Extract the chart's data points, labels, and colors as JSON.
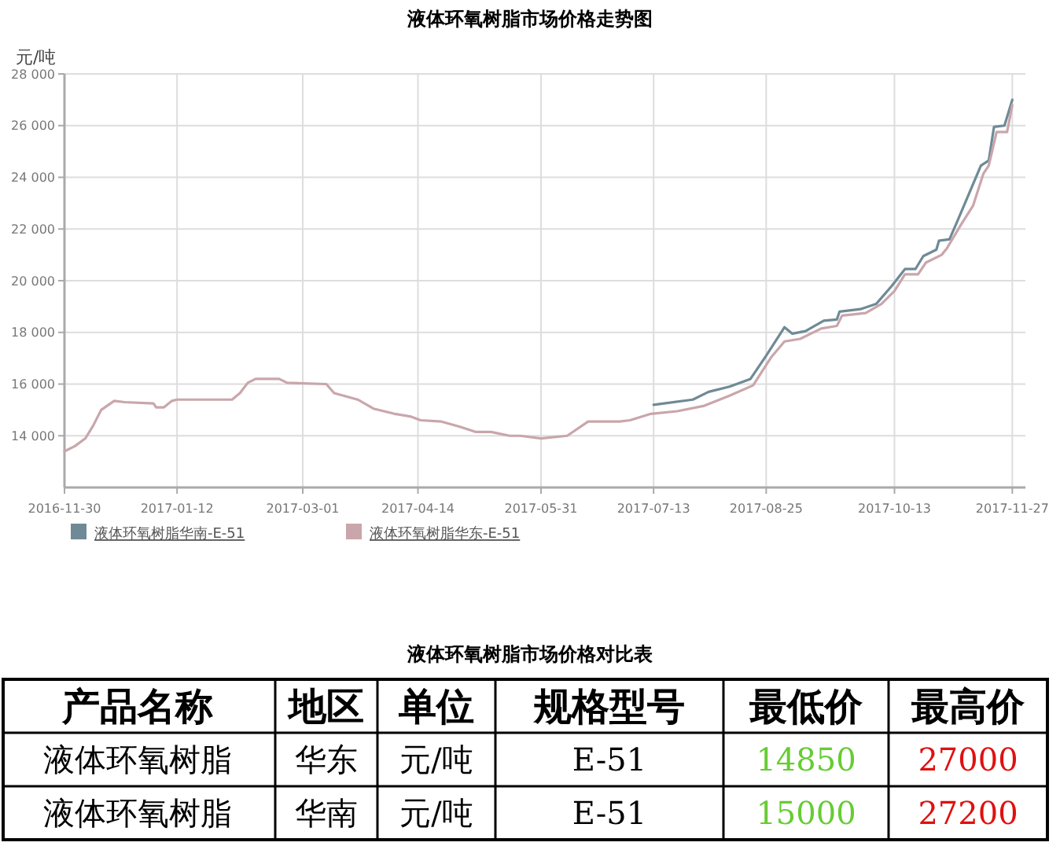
{
  "chart_data": [
    {
      "type": "line",
      "title": "液体环氧树脂市场价格走势图",
      "ylabel": "元/吨",
      "xlim": [
        "2016-11-30",
        "2017-12-02"
      ],
      "ylim": [
        12000,
        28000
      ],
      "xticks": [
        {
          "value": "2016-11-30",
          "label": "2016-11-30"
        },
        {
          "value": "2017-01-12",
          "label": "2017-01-12"
        },
        {
          "value": "2017-03-01",
          "label": "2017-03-01"
        },
        {
          "value": "2017-04-14",
          "label": "2017-04-14"
        },
        {
          "value": "2017-05-31",
          "label": "2017-05-31"
        },
        {
          "value": "2017-07-13",
          "label": "2017-07-13"
        },
        {
          "value": "2017-08-25",
          "label": "2017-08-25"
        },
        {
          "value": "2017-10-13",
          "label": "2017-10-13"
        },
        {
          "value": "2017-11-27",
          "label": "2017-11-27"
        }
      ],
      "yticks": [
        {
          "value": 14000,
          "label": "14 000"
        },
        {
          "value": 16000,
          "label": "16 000"
        },
        {
          "value": 18000,
          "label": "18 000"
        },
        {
          "value": 20000,
          "label": "20 000"
        },
        {
          "value": 22000,
          "label": "22 000"
        },
        {
          "value": 24000,
          "label": "24 000"
        },
        {
          "value": 26000,
          "label": "26 000"
        },
        {
          "value": 28000,
          "label": "28 000"
        }
      ],
      "grid": true,
      "legend": "bottom left",
      "series": [
        {
          "name": "液体环氧树脂华南-E-51",
          "color": "#6f8a96",
          "x": [
            "2017-07-13",
            "2017-07-28",
            "2017-08-03",
            "2017-08-11",
            "2017-08-19",
            "2017-08-25",
            "2017-09-01",
            "2017-09-04",
            "2017-09-09",
            "2017-09-16",
            "2017-09-21",
            "2017-09-22",
            "2017-09-30",
            "2017-10-06",
            "2017-10-12",
            "2017-10-17",
            "2017-10-21",
            "2017-10-24",
            "2017-10-29",
            "2017-10-30",
            "2017-11-03",
            "2017-11-06",
            "2017-11-15",
            "2017-11-18",
            "2017-11-20",
            "2017-11-24",
            "2017-11-27"
          ],
          "values": [
            15200,
            15400,
            15700,
            15900,
            16200,
            17100,
            18200,
            17950,
            18050,
            18450,
            18500,
            18800,
            18900,
            19100,
            19800,
            20450,
            20450,
            20950,
            21200,
            21550,
            21600,
            22300,
            24450,
            24650,
            25950,
            26000,
            27000
          ]
        },
        {
          "name": "液体环氧树脂华东-E-51",
          "color": "#c9a6ab",
          "x": [
            "2016-11-30",
            "2016-12-04",
            "2016-12-08",
            "2016-12-11",
            "2016-12-14",
            "2016-12-19",
            "2016-12-23",
            "2017-01-03",
            "2017-01-04",
            "2017-01-07",
            "2017-01-10",
            "2017-01-12",
            "2017-02-02",
            "2017-02-05",
            "2017-02-08",
            "2017-02-11",
            "2017-02-20",
            "2017-02-23",
            "2017-03-10",
            "2017-03-13",
            "2017-03-22",
            "2017-03-28",
            "2017-04-05",
            "2017-04-11",
            "2017-04-15",
            "2017-04-23",
            "2017-04-30",
            "2017-05-06",
            "2017-05-12",
            "2017-05-19",
            "2017-05-23",
            "2017-05-31",
            "2017-06-10",
            "2017-06-18",
            "2017-06-30",
            "2017-07-04",
            "2017-07-12",
            "2017-07-22",
            "2017-08-01",
            "2017-08-11",
            "2017-08-20",
            "2017-08-27",
            "2017-09-01",
            "2017-09-07",
            "2017-09-15",
            "2017-09-21",
            "2017-09-23",
            "2017-10-02",
            "2017-10-08",
            "2017-10-13",
            "2017-10-17",
            "2017-10-22",
            "2017-10-25",
            "2017-10-31",
            "2017-11-02",
            "2017-11-07",
            "2017-11-12",
            "2017-11-16",
            "2017-11-18",
            "2017-11-21",
            "2017-11-25",
            "2017-11-27"
          ],
          "values": [
            13400,
            13600,
            13900,
            14400,
            15000,
            15350,
            15300,
            15250,
            15100,
            15100,
            15350,
            15400,
            15400,
            15650,
            16050,
            16200,
            16200,
            16050,
            16000,
            15650,
            15400,
            15050,
            14850,
            14750,
            14600,
            14550,
            14350,
            14150,
            14150,
            14000,
            14000,
            13900,
            14000,
            14550,
            14550,
            14600,
            14850,
            14950,
            15150,
            15550,
            15950,
            17050,
            17650,
            17750,
            18150,
            18250,
            18650,
            18750,
            19100,
            19600,
            20250,
            20250,
            20700,
            21000,
            21250,
            22100,
            22900,
            24150,
            24450,
            25750,
            25750,
            26800
          ]
        }
      ]
    },
    {
      "type": "other",
      "title": "液体环氧树脂市场价格对比表",
      "annotations": [
        "产品名称",
        "地区",
        "单位",
        "规格型号",
        "最低价",
        "最高价",
        "液体环氧树脂",
        "华东",
        "元/吨",
        "E-51",
        "14850",
        "27000",
        "液体环氧树脂",
        "华南",
        "元/吨",
        "E-51",
        "15000",
        "27200"
      ]
    }
  ]
}
